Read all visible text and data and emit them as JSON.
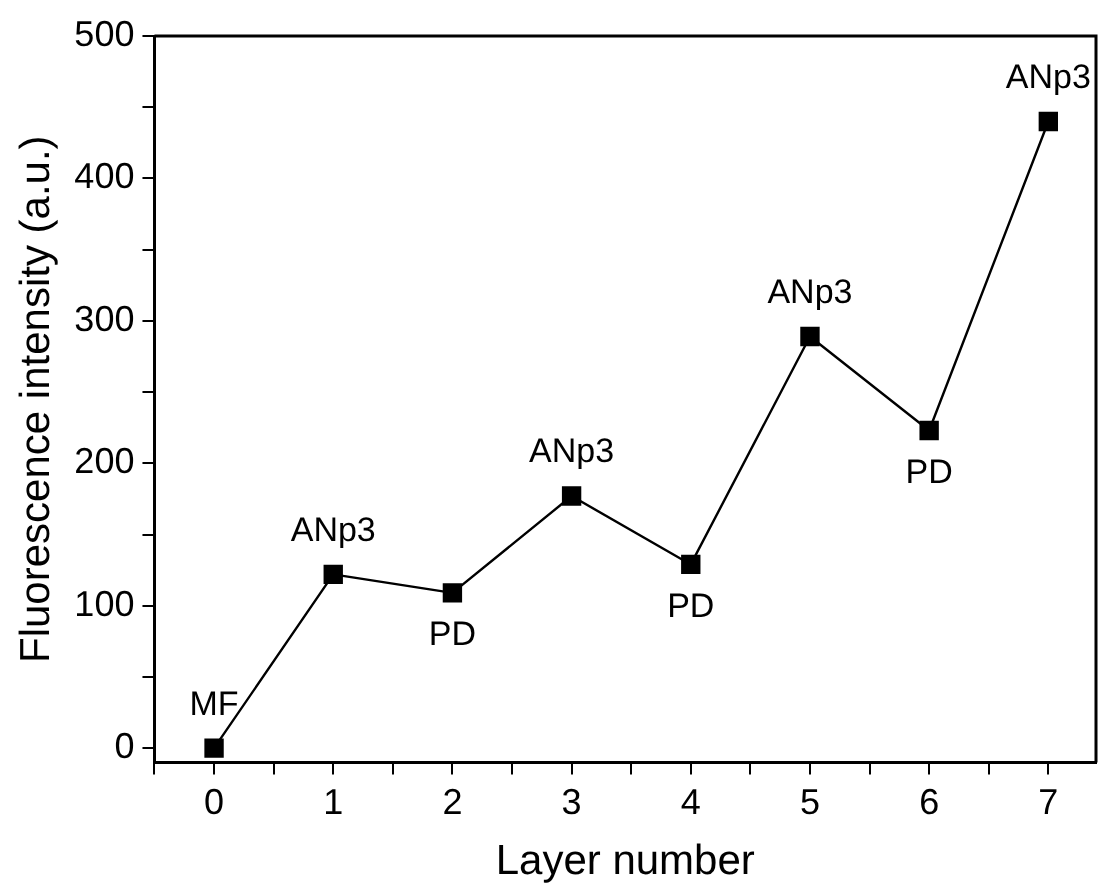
{
  "chart_data": {
    "type": "line",
    "xlabel": "Layer number",
    "ylabel": "Fluorescence intensity (a.u.)",
    "x": [
      0,
      1,
      2,
      3,
      4,
      5,
      6,
      7
    ],
    "series": [
      {
        "color": "#000000",
        "values": [
          0,
          122,
          109,
          177,
          129,
          289,
          223,
          440
        ]
      }
    ],
    "xlim": [
      -0.5,
      7.4
    ],
    "xticks": [
      {
        "value": -0.5,
        "label": null
      },
      0,
      {
        "value": 0.5,
        "label": null
      },
      1,
      {
        "value": 1.5,
        "label": null
      },
      2,
      {
        "value": 2.5,
        "label": null
      },
      3,
      {
        "value": 3.5,
        "label": null
      },
      4,
      {
        "value": 4.5,
        "label": null
      },
      5,
      {
        "value": 5.5,
        "label": null
      },
      6,
      {
        "value": 6.5,
        "label": null
      },
      7
    ],
    "ylim": [
      -10,
      500
    ],
    "yticks": [
      0,
      {
        "value": 50,
        "label": null
      },
      100,
      {
        "value": 150,
        "label": null
      },
      200,
      {
        "value": 250,
        "label": null
      },
      300,
      {
        "value": 350,
        "label": null
      },
      400,
      {
        "value": 450,
        "label": null
      },
      500
    ],
    "annotations": [
      {
        "text": "MF",
        "x": 0,
        "y": 0
      },
      {
        "text": "ANp3",
        "x": 1,
        "y": 122
      },
      {
        "text": "PD",
        "x": 2,
        "y": 109
      },
      {
        "text": "ANp3",
        "x": 3,
        "y": 177
      },
      {
        "text": "PD",
        "x": 4,
        "y": 129
      },
      {
        "text": "ANp3",
        "x": 5,
        "y": 289
      },
      {
        "text": "PD",
        "x": 6,
        "y": 223
      },
      {
        "text": "ANp3",
        "x": 7,
        "y": 440
      }
    ],
    "grid": false,
    "legend": false,
    "marker": "square",
    "line_style": "solid"
  }
}
